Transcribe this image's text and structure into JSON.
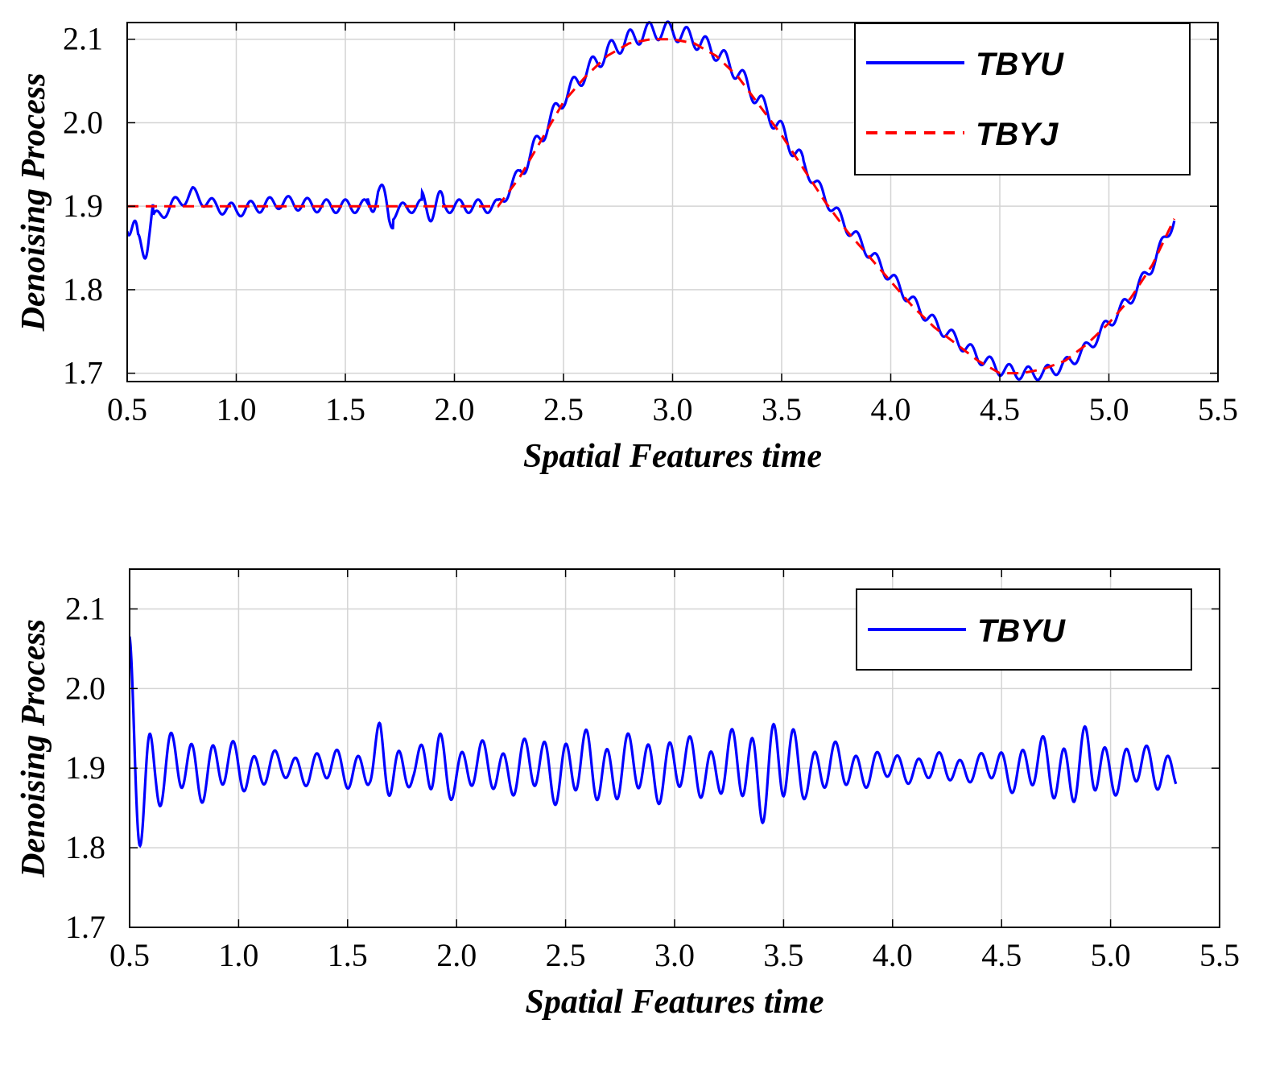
{
  "chart_data": [
    {
      "type": "line",
      "xlabel": "Spatial Features time",
      "ylabel": "Denoising Process",
      "xlim": [
        0.5,
        5.5
      ],
      "ylim": [
        1.69,
        2.12
      ],
      "x_ticks": [
        "0.5",
        "1.0",
        "1.5",
        "2.0",
        "2.5",
        "3.0",
        "3.5",
        "4.0",
        "4.5",
        "5.0",
        "5.5"
      ],
      "y_ticks": [
        "1.7",
        "1.8",
        "1.9",
        "2.0",
        "2.1"
      ],
      "grid": true,
      "legend_position": "top-right",
      "series": [
        {
          "name": "TBYU",
          "color": "#0000ff",
          "style": "solid",
          "x": [
            0.5,
            0.55,
            0.6,
            0.7,
            0.8,
            0.9,
            1.0,
            1.2,
            1.4,
            1.6,
            1.65,
            1.7,
            1.8,
            1.9,
            2.0,
            2.1,
            2.2,
            2.3,
            2.4,
            2.5,
            2.6,
            2.7,
            2.8,
            2.9,
            3.0,
            3.1,
            3.2,
            3.3,
            3.4,
            3.5,
            3.6,
            3.7,
            3.8,
            3.9,
            4.0,
            4.1,
            4.2,
            4.3,
            4.4,
            4.5,
            4.6,
            4.7,
            4.8,
            4.9,
            5.0,
            5.1,
            5.2,
            5.3
          ],
          "y": [
            1.9,
            1.84,
            1.88,
            1.9,
            1.915,
            1.9,
            1.895,
            1.905,
            1.9,
            1.9,
            1.92,
            1.89,
            1.9,
            1.9,
            1.9,
            1.9,
            1.9,
            1.94,
            1.985,
            2.03,
            2.06,
            2.085,
            2.1,
            2.11,
            2.11,
            2.1,
            2.085,
            2.06,
            2.025,
            1.99,
            1.95,
            1.91,
            1.875,
            1.845,
            1.815,
            1.785,
            1.76,
            1.74,
            1.72,
            1.705,
            1.7,
            1.7,
            1.71,
            1.73,
            1.76,
            1.79,
            1.83,
            1.885
          ]
        },
        {
          "name": "TBYJ",
          "color": "#ff0000",
          "style": "dashed",
          "x": [
            0.5,
            1.0,
            1.5,
            2.0,
            2.2,
            2.3,
            2.4,
            2.5,
            2.6,
            2.7,
            2.8,
            2.9,
            3.0,
            3.1,
            3.2,
            3.3,
            3.4,
            3.5,
            3.6,
            3.7,
            3.8,
            3.9,
            4.0,
            4.1,
            4.2,
            4.3,
            4.4,
            4.5,
            4.6,
            4.7,
            4.8,
            4.9,
            5.0,
            5.1,
            5.2,
            5.3
          ],
          "y": [
            1.9,
            1.9,
            1.9,
            1.9,
            1.9,
            1.935,
            1.98,
            2.025,
            2.055,
            2.08,
            2.095,
            2.1,
            2.1,
            2.095,
            2.08,
            2.055,
            2.02,
            1.985,
            1.945,
            1.905,
            1.87,
            1.84,
            1.81,
            1.78,
            1.755,
            1.735,
            1.715,
            1.7,
            1.7,
            1.705,
            1.715,
            1.735,
            1.76,
            1.79,
            1.83,
            1.885
          ]
        }
      ]
    },
    {
      "type": "line",
      "xlabel": "Spatial Features time",
      "ylabel": "Denoising Process",
      "xlim": [
        0.5,
        5.5
      ],
      "ylim": [
        1.7,
        2.15
      ],
      "x_ticks": [
        "0.5",
        "1.0",
        "1.5",
        "2.0",
        "2.5",
        "3.0",
        "3.5",
        "4.0",
        "4.5",
        "5.0",
        "5.5"
      ],
      "y_ticks": [
        "1.7",
        "1.8",
        "1.9",
        "2.0",
        "2.1"
      ],
      "grid": true,
      "legend_position": "top-right",
      "series": [
        {
          "name": "TBYU",
          "color": "#0000ff",
          "style": "solid",
          "x": [
            0.5,
            0.52,
            0.55,
            0.58,
            0.62,
            0.7,
            0.8,
            0.9,
            1.0,
            1.2,
            1.4,
            1.6,
            1.65,
            1.7,
            1.8,
            1.9,
            2.0,
            2.2,
            2.4,
            2.6,
            2.8,
            3.0,
            3.2,
            3.4,
            3.5,
            3.6,
            3.8,
            4.0,
            4.2,
            4.4,
            4.6,
            4.8,
            4.9,
            5.0,
            5.2,
            5.3
          ],
          "amplitude": [
            0.17,
            0.15,
            0.12,
            0.1,
            0.06,
            0.045,
            0.045,
            0.04,
            0.035,
            0.02,
            0.025,
            0.03,
            0.06,
            0.05,
            0.02,
            0.06,
            0.035,
            0.035,
            0.045,
            0.05,
            0.045,
            0.045,
            0.04,
            0.07,
            0.07,
            0.04,
            0.03,
            0.02,
            0.02,
            0.02,
            0.035,
            0.05,
            0.055,
            0.035,
            0.03,
            0.03
          ],
          "center": 1.9
        }
      ]
    }
  ]
}
